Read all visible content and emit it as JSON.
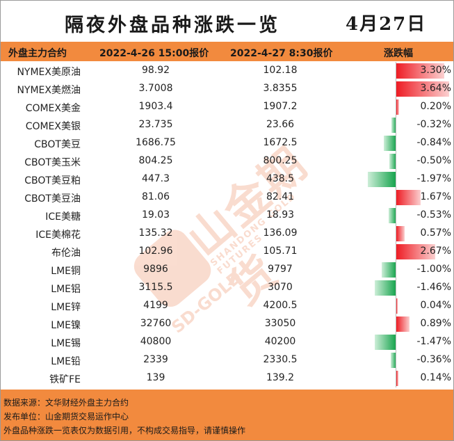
{
  "title": "隔夜外盘品种涨跌一览",
  "date": "4月27日",
  "header": {
    "name": "外盘主力合约",
    "prev": "2022-4-26 15:00报价",
    "curr": "2022-4-27 8:30报价",
    "change": "涨跌幅"
  },
  "rows": [
    {
      "name": "NYMEX美原油",
      "prev": "98.92",
      "curr": "102.18",
      "pct": "3.30%",
      "value": 3.3
    },
    {
      "name": "NYMEX美燃油",
      "prev": "3.7008",
      "curr": "3.8355",
      "pct": "3.64%",
      "value": 3.64
    },
    {
      "name": "COMEX美金",
      "prev": "1903.4",
      "curr": "1907.2",
      "pct": "0.20%",
      "value": 0.2
    },
    {
      "name": "COMEX美银",
      "prev": "23.735",
      "curr": "23.66",
      "pct": "-0.32%",
      "value": -0.32
    },
    {
      "name": "CBOT美豆",
      "prev": "1686.75",
      "curr": "1672.5",
      "pct": "-0.84%",
      "value": -0.84
    },
    {
      "name": "CBOT美玉米",
      "prev": "804.25",
      "curr": "800.25",
      "pct": "-0.50%",
      "value": -0.5
    },
    {
      "name": "CBOT美豆粕",
      "prev": "447.3",
      "curr": "438.5",
      "pct": "-1.97%",
      "value": -1.97
    },
    {
      "name": "CBOT美豆油",
      "prev": "81.06",
      "curr": "82.41",
      "pct": "1.67%",
      "value": 1.67
    },
    {
      "name": "ICE美糖",
      "prev": "19.03",
      "curr": "18.93",
      "pct": "-0.53%",
      "value": -0.53
    },
    {
      "name": "ICE美棉花",
      "prev": "135.32",
      "curr": "136.09",
      "pct": "0.57%",
      "value": 0.57
    },
    {
      "name": "布伦油",
      "prev": "102.96",
      "curr": "105.71",
      "pct": "2.67%",
      "value": 2.67
    },
    {
      "name": "LME铜",
      "prev": "9896",
      "curr": "9797",
      "pct": "-1.00%",
      "value": -1.0
    },
    {
      "name": "LME铝",
      "prev": "3115.5",
      "curr": "3070",
      "pct": "-1.46%",
      "value": -1.46
    },
    {
      "name": "LME锌",
      "prev": "4199",
      "curr": "4200.5",
      "pct": "0.04%",
      "value": 0.04
    },
    {
      "name": "LME镍",
      "prev": "32760",
      "curr": "33050",
      "pct": "0.89%",
      "value": 0.89
    },
    {
      "name": "LME锡",
      "prev": "40800",
      "curr": "40200",
      "pct": "-1.47%",
      "value": -1.47
    },
    {
      "name": "LME铅",
      "prev": "2339",
      "curr": "2330.5",
      "pct": "-0.36%",
      "value": -0.36
    },
    {
      "name": "铁矿FE",
      "prev": "139",
      "curr": "139.2",
      "pct": "0.14%",
      "value": 0.14
    }
  ],
  "footer": [
    "数据来源：文华财经外盘主力合约",
    "发布单位：山金期货交易运作中心",
    "外盘品种涨跌一览表仅为数据引用，不构成交易指导，请谨慎操作"
  ],
  "watermark": {
    "cn": "山金期货",
    "en": "SHANDONG GOLD FUTURES",
    "sd": "SD-GOLD"
  },
  "colors": {
    "header": "#f28a3e",
    "up": "#ee1c24",
    "down": "#12a24a"
  }
}
